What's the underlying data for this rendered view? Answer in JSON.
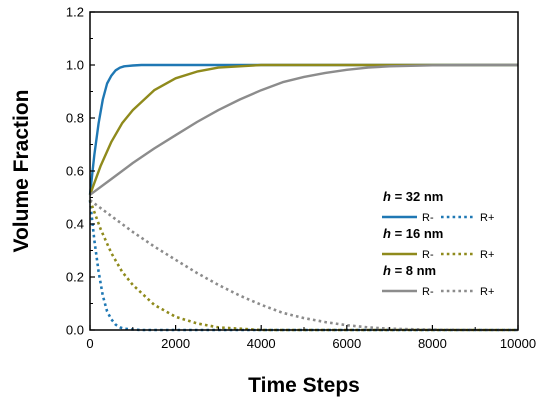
{
  "chart_data": {
    "type": "line",
    "xlabel": "Time Steps",
    "ylabel": "Volume Fraction",
    "xlim": [
      0,
      10000
    ],
    "ylim": [
      0,
      1.2
    ],
    "x_ticks": [
      0,
      2000,
      4000,
      6000,
      8000,
      10000
    ],
    "y_ticks": [
      0.0,
      0.2,
      0.4,
      0.6,
      0.8,
      1.0,
      1.2
    ],
    "x_tick_labels": [
      "0",
      "2000",
      "4000",
      "6000",
      "8000",
      "10000"
    ],
    "y_tick_labels": [
      "0.0",
      "0.2",
      "0.4",
      "0.6",
      "0.8",
      "1.0",
      "1.2"
    ],
    "grid": false,
    "legend_position": "center-right",
    "groups": [
      {
        "header_var": "h",
        "header_value": "= 32 nm",
        "color": "#1f78b4",
        "series": [
          {
            "name": "R-",
            "style": "solid",
            "x": [
              0,
              100,
              200,
              300,
              400,
              500,
              600,
              700,
              800,
              1000,
              1200,
              1500,
              2000,
              3000,
              5000,
              10000
            ],
            "y": [
              0.51,
              0.66,
              0.78,
              0.87,
              0.93,
              0.96,
              0.98,
              0.99,
              0.995,
              0.998,
              1.0,
              1.0,
              1.0,
              1.0,
              1.0,
              1.0
            ]
          },
          {
            "name": "R+",
            "style": "dotted",
            "x": [
              0,
              100,
              200,
              300,
              400,
              500,
              600,
              700,
              800,
              1000,
              1200,
              1500,
              2000,
              3000,
              5000,
              10000
            ],
            "y": [
              0.49,
              0.34,
              0.22,
              0.13,
              0.07,
              0.04,
              0.02,
              0.01,
              0.005,
              0.002,
              0.0,
              0.0,
              0.0,
              0.0,
              0.0,
              0.0
            ]
          }
        ]
      },
      {
        "header_var": "h",
        "header_value": "= 16 nm",
        "color": "#8f8a1c",
        "series": [
          {
            "name": "R-",
            "style": "solid",
            "x": [
              0,
              250,
              500,
              750,
              1000,
              1500,
              2000,
              2500,
              3000,
              3500,
              4000,
              5000,
              6000,
              8000,
              10000
            ],
            "y": [
              0.51,
              0.62,
              0.71,
              0.78,
              0.83,
              0.905,
              0.95,
              0.975,
              0.99,
              0.995,
              1.0,
              1.0,
              1.0,
              1.0,
              1.0
            ]
          },
          {
            "name": "R+",
            "style": "dotted",
            "x": [
              0,
              250,
              500,
              750,
              1000,
              1500,
              2000,
              2500,
              3000,
              3500,
              4000,
              5000,
              6000,
              8000,
              10000
            ],
            "y": [
              0.49,
              0.38,
              0.29,
              0.22,
              0.17,
              0.095,
              0.05,
              0.025,
              0.01,
              0.005,
              0.0,
              0.0,
              0.0,
              0.0,
              0.0
            ]
          }
        ]
      },
      {
        "header_var": "h",
        "header_value": "= 8 nm",
        "color": "#8c8c8c",
        "series": [
          {
            "name": "R-",
            "style": "solid",
            "x": [
              0,
              500,
              1000,
              1500,
              2000,
              2500,
              3000,
              3500,
              4000,
              4500,
              5000,
              5500,
              6000,
              6500,
              7000,
              8000,
              9000,
              10000
            ],
            "y": [
              0.51,
              0.57,
              0.63,
              0.685,
              0.735,
              0.785,
              0.83,
              0.87,
              0.905,
              0.935,
              0.955,
              0.97,
              0.982,
              0.99,
              0.995,
              0.999,
              1.0,
              1.0
            ]
          },
          {
            "name": "R+",
            "style": "dotted",
            "x": [
              0,
              500,
              1000,
              1500,
              2000,
              2500,
              3000,
              3500,
              4000,
              4500,
              5000,
              5500,
              6000,
              6500,
              7000,
              8000,
              9000,
              10000
            ],
            "y": [
              0.49,
              0.43,
              0.37,
              0.315,
              0.265,
              0.215,
              0.17,
              0.13,
              0.095,
              0.065,
              0.045,
              0.03,
              0.018,
              0.01,
              0.005,
              0.001,
              0.0,
              0.0
            ]
          }
        ]
      }
    ]
  }
}
